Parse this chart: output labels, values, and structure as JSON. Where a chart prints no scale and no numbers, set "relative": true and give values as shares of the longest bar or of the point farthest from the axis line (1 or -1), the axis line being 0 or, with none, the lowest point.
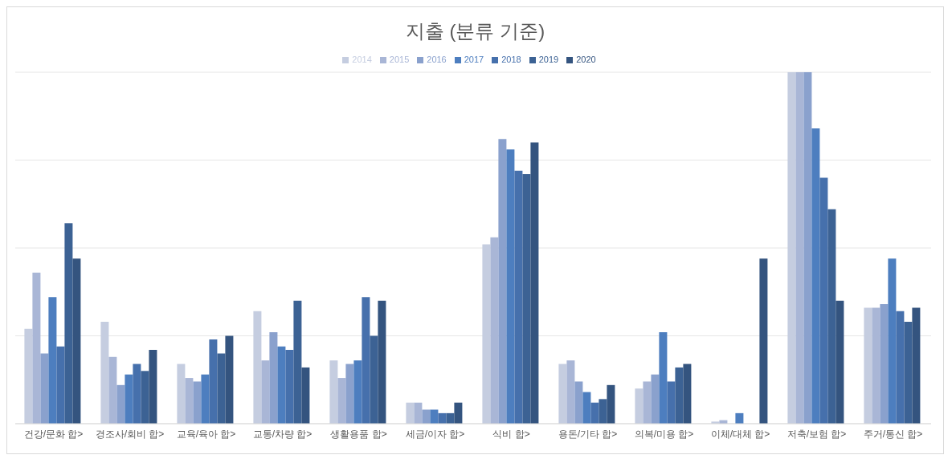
{
  "chart_data": {
    "type": "bar",
    "title": "지출 (분류 기준)",
    "relative": true,
    "grid": "y",
    "legend": "top",
    "categories": [
      "건강/문화 합>",
      "경조사/회비 합>",
      "교육/육아 합>",
      "교통/차량 합>",
      "생활용품 합>",
      "세금/이자 합>",
      "식비 합>",
      "용돈/기타 합>",
      "의복/미용 합>",
      "이체/대체 합>",
      "저축/보험 합>",
      "주거/통신 합>"
    ],
    "series": [
      {
        "name": "2014",
        "color": "#c5cde0",
        "values": [
          0.27,
          0.29,
          0.17,
          0.32,
          0.18,
          0.06,
          0.51,
          0.17,
          0.1,
          0.006,
          1,
          0.33
        ]
      },
      {
        "name": "2015",
        "color": "#a9b6d6",
        "values": [
          0.43,
          0.19,
          0.13,
          0.18,
          0.13,
          0.06,
          0.53,
          0.18,
          0.12,
          0.01,
          1,
          0.33
        ]
      },
      {
        "name": "2016",
        "color": "#8aa1cd",
        "values": [
          0.2,
          0.11,
          0.12,
          0.26,
          0.17,
          0.04,
          0.81,
          0.12,
          0.14,
          0,
          1,
          0.34
        ]
      },
      {
        "name": "2017",
        "color": "#4d7ebf",
        "values": [
          0.36,
          0.14,
          0.14,
          0.22,
          0.18,
          0.04,
          0.78,
          0.09,
          0.26,
          0.03,
          0.84,
          0.47
        ]
      },
      {
        "name": "2018",
        "color": "#4670ac",
        "values": [
          0.22,
          0.17,
          0.24,
          0.21,
          0.36,
          0.03,
          0.72,
          0.06,
          0.12,
          0,
          0.7,
          0.32
        ]
      },
      {
        "name": "2019",
        "color": "#3c6294",
        "values": [
          0.57,
          0.15,
          0.2,
          0.35,
          0.25,
          0.03,
          0.71,
          0.07,
          0.16,
          0,
          0.61,
          0.29
        ]
      },
      {
        "name": "2020",
        "color": "#34547f",
        "values": [
          0.47,
          0.21,
          0.25,
          0.16,
          0.35,
          0.06,
          0.8,
          0.11,
          0.17,
          0.47,
          0.35,
          0.33
        ]
      }
    ]
  }
}
